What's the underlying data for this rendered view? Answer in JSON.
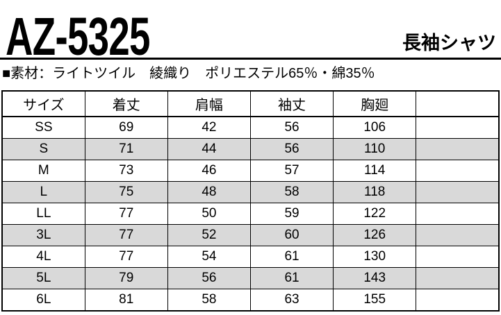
{
  "header": {
    "product_code": "AZ-5325",
    "product_name": "長袖シャツ"
  },
  "material": {
    "line": "■素材：ライトツイル　綾織り　ポリエステル65％・綿35％"
  },
  "size_table": {
    "columns": [
      "サイズ",
      "着丈",
      "肩幅",
      "袖丈",
      "胸廻",
      ""
    ],
    "rows": [
      {
        "size": "SS",
        "values": [
          "69",
          "42",
          "56",
          "106"
        ]
      },
      {
        "size": "S",
        "values": [
          "71",
          "44",
          "56",
          "110"
        ]
      },
      {
        "size": "M",
        "values": [
          "73",
          "46",
          "57",
          "114"
        ]
      },
      {
        "size": "L",
        "values": [
          "75",
          "48",
          "58",
          "118"
        ]
      },
      {
        "size": "LL",
        "values": [
          "77",
          "50",
          "59",
          "122"
        ]
      },
      {
        "size": "3L",
        "values": [
          "77",
          "52",
          "60",
          "126"
        ]
      },
      {
        "size": "4L",
        "values": [
          "77",
          "54",
          "61",
          "130"
        ]
      },
      {
        "size": "5L",
        "values": [
          "79",
          "56",
          "61",
          "143"
        ]
      },
      {
        "size": "6L",
        "values": [
          "81",
          "58",
          "63",
          "155"
        ]
      }
    ]
  },
  "colors": {
    "row_stripe": "#d9d9d9",
    "border": "#000000",
    "background": "#ffffff",
    "text": "#000000"
  }
}
